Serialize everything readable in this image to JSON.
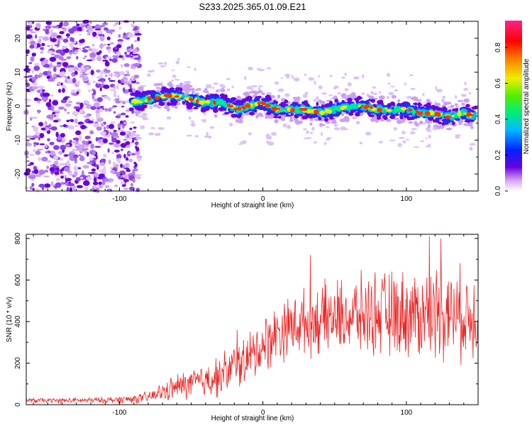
{
  "title": "S233.2025.365.01.09.E21",
  "chart_data": [
    {
      "type": "heatmap",
      "title": "S233.2025.365.01.09.E21",
      "xlabel": "Height of straight line (km)",
      "ylabel": "Frequency (Hz)",
      "xlim": [
        -165,
        150
      ],
      "ylim": [
        -25,
        25
      ],
      "xticks": [
        -100,
        0,
        100
      ],
      "yticks": [
        -20,
        -10,
        0,
        10,
        20
      ],
      "ridge": {
        "x": [
          -92,
          -80,
          -70,
          -60,
          -50,
          -40,
          -30,
          -22,
          -18,
          -10,
          0,
          10,
          20,
          30,
          40,
          50,
          60,
          70,
          80,
          90,
          100,
          110,
          120,
          125,
          130,
          140,
          148
        ],
        "freq": [
          1,
          2,
          3,
          3,
          2,
          1,
          1,
          0,
          -1,
          0,
          1,
          -1,
          -1,
          -1,
          -2,
          -1,
          0,
          0,
          -1,
          -1,
          -1,
          -2,
          -2,
          -3,
          -3,
          -2,
          -3
        ]
      },
      "noise_until_km": -92,
      "colorbar": {
        "label": "Normalized spectral amplitude",
        "range": [
          0.0,
          0.95
        ],
        "ticks": [
          0.0,
          0.2,
          0.4,
          0.6,
          0.8
        ],
        "tick_labels": [
          "0.0",
          "0.2",
          "0.4",
          "0.6",
          "0.8"
        ]
      }
    },
    {
      "type": "line",
      "xlabel": "Height of straight line (km)",
      "ylabel": "SNR (10 * v/v)",
      "xlim": [
        -165,
        150
      ],
      "ylim": [
        0,
        820
      ],
      "xticks": [
        -100,
        0,
        100
      ],
      "yticks": [
        0,
        200,
        400,
        600,
        800
      ],
      "color": "#ee2222",
      "series": [
        {
          "name": "SNR",
          "x": [
            -165,
            -140,
            -110,
            -90,
            -80,
            -70,
            -60,
            -50,
            -40,
            -30,
            -20,
            -10,
            0,
            10,
            20,
            30,
            40,
            50,
            60,
            70,
            80,
            90,
            100,
            110,
            120,
            130,
            140,
            150
          ],
          "mean": [
            20,
            20,
            22,
            28,
            35,
            60,
            85,
            100,
            115,
            140,
            180,
            220,
            290,
            350,
            380,
            400,
            410,
            420,
            425,
            430,
            440,
            430,
            440,
            430,
            450,
            440,
            430,
            430
          ],
          "spread": [
            15,
            15,
            18,
            25,
            35,
            55,
            75,
            90,
            100,
            120,
            140,
            150,
            170,
            170,
            180,
            190,
            200,
            210,
            220,
            230,
            240,
            250,
            250,
            260,
            270,
            270,
            260,
            250
          ]
        }
      ],
      "spikes": [
        {
          "x": 33,
          "y": 720
        },
        {
          "x": 116,
          "y": 810
        },
        {
          "x": 124,
          "y": 800
        },
        {
          "x": -48,
          "y": 165
        },
        {
          "x": -38,
          "y": 180
        },
        {
          "x": -18,
          "y": 360
        }
      ]
    }
  ]
}
